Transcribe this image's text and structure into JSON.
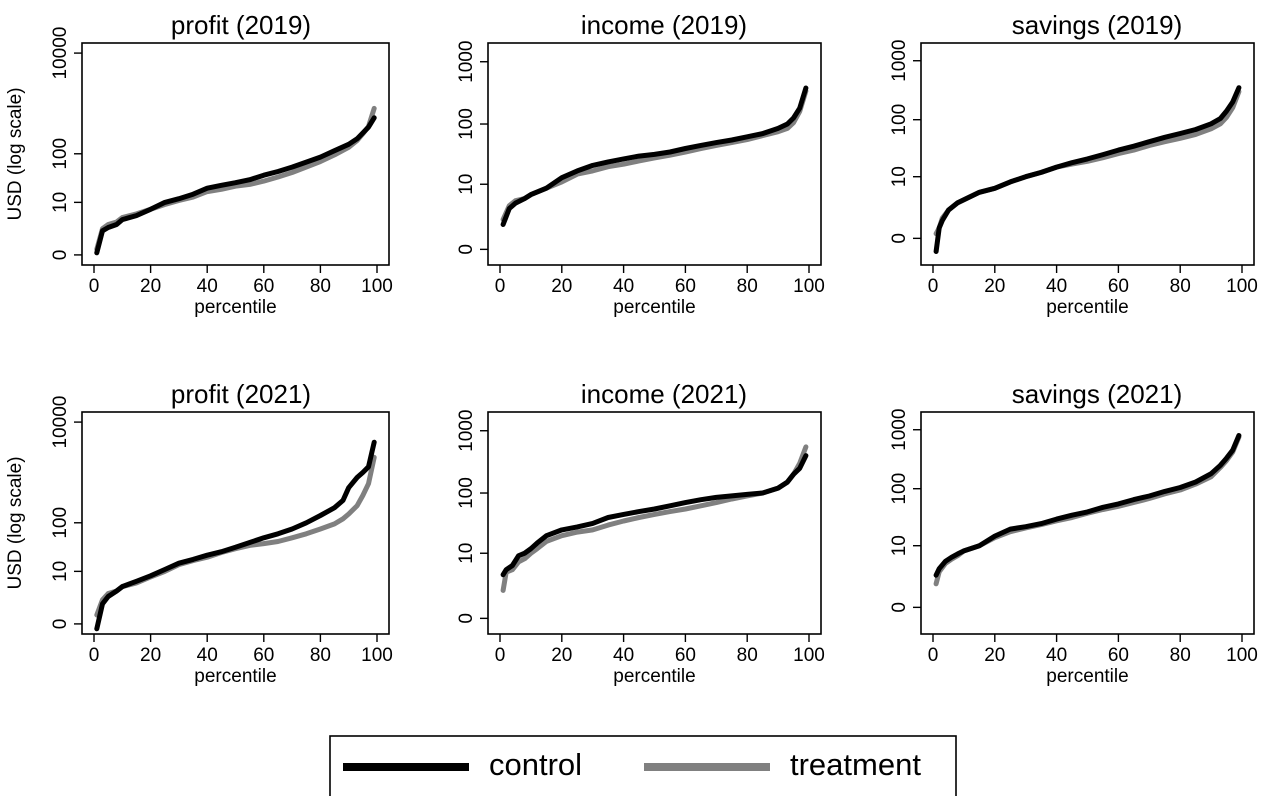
{
  "legend": {
    "items": [
      {
        "label": "control",
        "color": "#000000"
      },
      {
        "label": "treatment",
        "color": "#808080"
      }
    ]
  },
  "chart_data": [
    {
      "type": "line",
      "title": "profit (2019)",
      "xlabel": "percentile",
      "ylabel": "USD (log scale)",
      "xlim": [
        0,
        100
      ],
      "yscale": "log1p",
      "yticks": [
        "0",
        "10",
        "100",
        "10000"
      ],
      "xticks": [
        "0",
        "20",
        "40",
        "60",
        "80",
        "100"
      ],
      "grid": false,
      "series": [
        {
          "name": "control",
          "color": "#000000",
          "x": [
            1,
            3,
            5,
            8,
            10,
            15,
            20,
            25,
            30,
            35,
            40,
            45,
            50,
            55,
            60,
            65,
            70,
            75,
            80,
            85,
            90,
            93,
            95,
            97,
            99
          ],
          "y": [
            0.1,
            2,
            2.5,
            3,
            4,
            5,
            7,
            10,
            12,
            15,
            20,
            23,
            26,
            30,
            37,
            44,
            54,
            68,
            86,
            115,
            155,
            200,
            260,
            340,
            520
          ]
        },
        {
          "name": "treatment",
          "color": "#808080",
          "x": [
            1,
            3,
            5,
            8,
            10,
            15,
            20,
            25,
            30,
            35,
            40,
            45,
            50,
            55,
            60,
            65,
            70,
            75,
            80,
            85,
            90,
            93,
            95,
            97,
            99
          ],
          "y": [
            0.3,
            2.3,
            3,
            3.5,
            4.5,
            5.5,
            7,
            9,
            11,
            13,
            17,
            19,
            22,
            24,
            28,
            34,
            42,
            54,
            70,
            95,
            135,
            185,
            250,
            350,
            800
          ]
        }
      ]
    },
    {
      "type": "line",
      "title": "income (2019)",
      "xlabel": "percentile",
      "ylabel": "",
      "xlim": [
        0,
        100
      ],
      "yscale": "log1p",
      "yticks": [
        "0",
        "10",
        "100",
        "1000"
      ],
      "xticks": [
        "0",
        "20",
        "40",
        "60",
        "80",
        "100"
      ],
      "grid": false,
      "series": [
        {
          "name": "control",
          "color": "#000000",
          "x": [
            1,
            3,
            5,
            8,
            10,
            15,
            20,
            25,
            30,
            35,
            40,
            45,
            50,
            55,
            60,
            65,
            70,
            75,
            80,
            85,
            90,
            93,
            95,
            97,
            99
          ],
          "y": [
            1.5,
            3.5,
            4.5,
            5.5,
            6.5,
            8.5,
            13,
            17,
            21,
            24,
            27,
            30,
            32,
            35,
            40,
            45,
            50,
            55,
            62,
            70,
            85,
            100,
            125,
            180,
            380
          ]
        },
        {
          "name": "treatment",
          "color": "#808080",
          "x": [
            1,
            3,
            5,
            8,
            10,
            15,
            20,
            25,
            30,
            35,
            40,
            45,
            50,
            55,
            60,
            65,
            70,
            75,
            80,
            85,
            90,
            93,
            95,
            97,
            99
          ],
          "y": [
            2,
            4,
            5,
            5.5,
            6.5,
            8.5,
            11,
            15,
            17,
            20,
            22,
            25,
            28,
            31,
            35,
            40,
            45,
            50,
            56,
            65,
            75,
            85,
            105,
            160,
            340
          ]
        }
      ]
    },
    {
      "type": "line",
      "title": "savings (2019)",
      "xlabel": "percentile",
      "ylabel": "",
      "xlim": [
        0,
        100
      ],
      "yscale": "log1p",
      "yticks": [
        "0",
        "10",
        "100",
        "1000"
      ],
      "xticks": [
        "0",
        "20",
        "40",
        "60",
        "80",
        "100"
      ],
      "grid": false,
      "series": [
        {
          "name": "control",
          "color": "#000000",
          "x": [
            1,
            2,
            3,
            5,
            8,
            10,
            15,
            20,
            25,
            30,
            35,
            40,
            45,
            50,
            55,
            60,
            65,
            70,
            75,
            80,
            85,
            90,
            93,
            95,
            97,
            99
          ],
          "y": [
            -0.4,
            0.5,
            1,
            2,
            3,
            3.5,
            5,
            6,
            8,
            10,
            12,
            15,
            18,
            21,
            25,
            30,
            35,
            42,
            50,
            58,
            68,
            85,
            105,
            140,
            200,
            350
          ]
        },
        {
          "name": "treatment",
          "color": "#808080",
          "x": [
            1,
            2,
            3,
            5,
            8,
            10,
            15,
            20,
            25,
            30,
            35,
            40,
            45,
            50,
            55,
            60,
            65,
            70,
            75,
            80,
            85,
            90,
            93,
            95,
            97,
            99
          ],
          "y": [
            0.2,
            0.5,
            1.2,
            2,
            3,
            3.5,
            5,
            6,
            8,
            10,
            12,
            15,
            17,
            19,
            22,
            26,
            30,
            36,
            42,
            48,
            56,
            70,
            85,
            110,
            160,
            300
          ]
        }
      ]
    },
    {
      "type": "line",
      "title": "profit (2021)",
      "xlabel": "percentile",
      "ylabel": "USD (log scale)",
      "xlim": [
        0,
        100
      ],
      "yscale": "log1p",
      "yticks": [
        "0",
        "10",
        "100",
        "10000"
      ],
      "xticks": [
        "0",
        "20",
        "40",
        "60",
        "80",
        "100"
      ],
      "grid": false,
      "series": [
        {
          "name": "control",
          "color": "#000000",
          "x": [
            1,
            3,
            5,
            8,
            10,
            15,
            20,
            25,
            30,
            35,
            40,
            45,
            50,
            55,
            60,
            65,
            70,
            75,
            80,
            85,
            88,
            90,
            93,
            95,
            97,
            99
          ],
          "y": [
            -0.2,
            1.5,
            2.5,
            3.5,
            4.5,
            6,
            8,
            11,
            15,
            18,
            22,
            26,
            32,
            40,
            50,
            60,
            75,
            100,
            140,
            200,
            280,
            500,
            800,
            1000,
            1300,
            4000
          ]
        },
        {
          "name": "treatment",
          "color": "#808080",
          "x": [
            1,
            3,
            5,
            8,
            10,
            15,
            20,
            25,
            30,
            35,
            40,
            45,
            50,
            55,
            60,
            65,
            70,
            75,
            80,
            85,
            88,
            90,
            93,
            95,
            97,
            99
          ],
          "y": [
            0.5,
            2,
            3,
            3.5,
            4.5,
            5.5,
            7.5,
            10,
            14,
            17,
            20,
            25,
            30,
            35,
            38,
            42,
            50,
            60,
            75,
            95,
            120,
            150,
            220,
            350,
            600,
            2000
          ]
        }
      ]
    },
    {
      "type": "line",
      "title": "income (2021)",
      "xlabel": "percentile",
      "ylabel": "",
      "xlim": [
        0,
        100
      ],
      "yscale": "log1p",
      "yticks": [
        "0",
        "10",
        "100",
        "1000"
      ],
      "xticks": [
        "0",
        "20",
        "40",
        "60",
        "80",
        "100"
      ],
      "grid": false,
      "series": [
        {
          "name": "control",
          "color": "#000000",
          "x": [
            1,
            2,
            4,
            6,
            8,
            10,
            12,
            15,
            20,
            25,
            30,
            35,
            40,
            45,
            50,
            55,
            60,
            65,
            70,
            75,
            80,
            85,
            90,
            93,
            95,
            97,
            99
          ],
          "y": [
            4,
            5,
            6,
            9,
            10,
            12,
            15,
            20,
            25,
            28,
            32,
            40,
            45,
            50,
            55,
            62,
            70,
            78,
            85,
            90,
            95,
            100,
            120,
            150,
            200,
            250,
            400
          ]
        },
        {
          "name": "treatment",
          "color": "#808080",
          "x": [
            1,
            2,
            4,
            6,
            8,
            10,
            12,
            15,
            20,
            25,
            30,
            35,
            40,
            45,
            50,
            55,
            60,
            65,
            70,
            75,
            80,
            85,
            90,
            93,
            95,
            97,
            99
          ],
          "y": [
            1.8,
            4.5,
            5,
            7,
            8,
            10,
            12,
            16,
            20,
            23,
            25,
            30,
            35,
            40,
            45,
            50,
            55,
            62,
            70,
            80,
            90,
            100,
            120,
            150,
            200,
            300,
            550
          ]
        }
      ]
    },
    {
      "type": "line",
      "title": "savings (2021)",
      "xlabel": "percentile",
      "ylabel": "",
      "xlim": [
        0,
        100
      ],
      "yscale": "log1p",
      "yticks": [
        "0",
        "10",
        "100",
        "1000"
      ],
      "xticks": [
        "0",
        "20",
        "40",
        "60",
        "80",
        "100"
      ],
      "grid": false,
      "series": [
        {
          "name": "control",
          "color": "#000000",
          "x": [
            1,
            2,
            4,
            6,
            8,
            10,
            15,
            20,
            25,
            30,
            35,
            40,
            45,
            50,
            55,
            60,
            65,
            70,
            75,
            80,
            85,
            90,
            93,
            95,
            97,
            99
          ],
          "y": [
            2.5,
            3.5,
            5,
            6,
            7,
            8,
            10,
            15,
            20,
            22,
            25,
            30,
            35,
            40,
            48,
            55,
            65,
            75,
            90,
            105,
            130,
            180,
            250,
            330,
            450,
            800
          ]
        },
        {
          "name": "treatment",
          "color": "#808080",
          "x": [
            1,
            2,
            4,
            6,
            8,
            10,
            15,
            20,
            25,
            30,
            35,
            40,
            45,
            50,
            55,
            60,
            65,
            70,
            75,
            80,
            85,
            90,
            93,
            95,
            97,
            99
          ],
          "y": [
            1.5,
            3,
            4.5,
            5.5,
            6.5,
            8,
            10,
            14,
            18,
            21,
            24,
            28,
            32,
            38,
            44,
            50,
            58,
            68,
            82,
            95,
            120,
            160,
            230,
            300,
            420,
            750
          ]
        }
      ]
    }
  ]
}
